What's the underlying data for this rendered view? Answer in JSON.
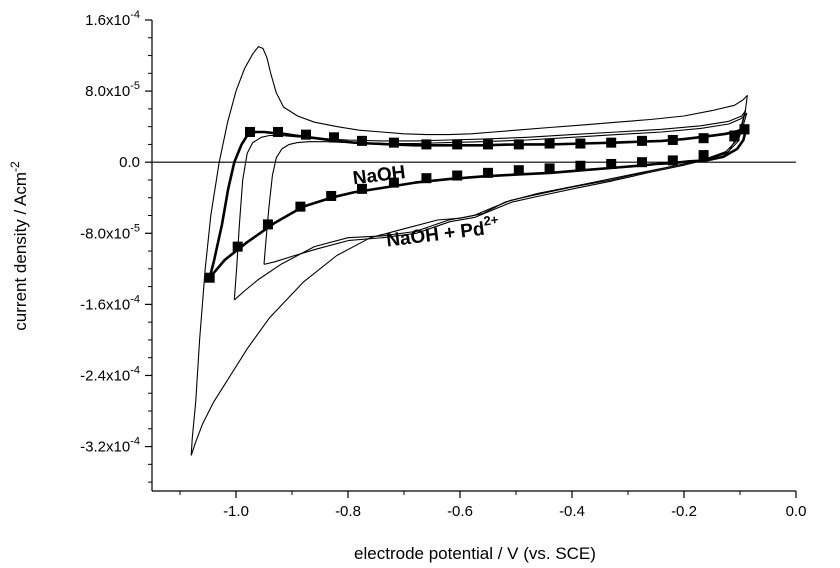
{
  "chart_data": {
    "type": "line",
    "title": "",
    "xlabel": "electrode potential / V (vs. SCE)",
    "ylabel": "current density / Acm",
    "ylabel_sup": "-2",
    "xlim": [
      -1.15,
      0.0
    ],
    "ylim": [
      -0.00037,
      0.00016
    ],
    "x_ticks": [
      {
        "value": -1.0,
        "label": "-1.0"
      },
      {
        "value": -0.8,
        "label": "-0.8"
      },
      {
        "value": -0.6,
        "label": "-0.6"
      },
      {
        "value": -0.4,
        "label": "-0.4"
      },
      {
        "value": -0.2,
        "label": "-0.2"
      },
      {
        "value": 0.0,
        "label": "0.0"
      }
    ],
    "y_ticks": [
      {
        "value": 0.00016,
        "label": "1.6x10",
        "sup": "-4"
      },
      {
        "value": 8e-05,
        "label": "8.0x10",
        "sup": "-5"
      },
      {
        "value": 0.0,
        "label": "0.0",
        "sup": ""
      },
      {
        "value": -8e-05,
        "label": "-8.0x10",
        "sup": "-5"
      },
      {
        "value": -0.00016,
        "label": "-1.6x10",
        "sup": "-4"
      },
      {
        "value": -0.00024,
        "label": "-2.4x10",
        "sup": "-4"
      },
      {
        "value": -0.00032,
        "label": "-3.2x10",
        "sup": "-4"
      }
    ],
    "grid": false,
    "legend": "none",
    "zero_line": true,
    "annotations": [
      {
        "text": "NaOH",
        "sup": "",
        "x": -0.79,
        "y": -2.5e-05,
        "rotate": -7
      },
      {
        "text": "NaOH + Pd",
        "sup": "2+",
        "x": -0.73,
        "y": -9.5e-05,
        "rotate": -7
      }
    ],
    "series": [
      {
        "style": "squares",
        "x": [
          -1.047,
          -1.039,
          -1.025,
          -1.014,
          -1.003,
          -0.99,
          -0.98,
          -0.965,
          -0.95,
          -0.935,
          -0.915,
          -0.895,
          -0.87,
          -0.845,
          -0.82,
          -0.79,
          -0.76,
          -0.72,
          -0.68,
          -0.64,
          -0.6,
          -0.56,
          -0.5,
          -0.44,
          -0.38,
          -0.32,
          -0.28,
          -0.24,
          -0.2,
          -0.16,
          -0.125,
          -0.105,
          -0.095,
          -0.09,
          -0.094,
          -0.105,
          -0.13,
          -0.16,
          -0.19,
          -0.22,
          -0.25,
          -0.28,
          -0.32,
          -0.38,
          -0.44,
          -0.5,
          -0.56,
          -0.62,
          -0.68,
          -0.74,
          -0.79,
          -0.83,
          -0.88,
          -0.93,
          -0.98,
          -1.02,
          -1.047
        ],
        "y": [
          -0.00013,
          -0.00011,
          -7e-05,
          -3e-05,
          0.0,
          2e-05,
          3e-05,
          3.4e-05,
          3.4e-05,
          3.3e-05,
          3.2e-05,
          3e-05,
          2.8e-05,
          2.6e-05,
          2.4e-05,
          2.2e-05,
          2.1e-05,
          2e-05,
          1.9e-05,
          1.9e-05,
          1.9e-05,
          1.9e-05,
          2e-05,
          2e-05,
          2.1e-05,
          2.2e-05,
          2.3e-05,
          2.4e-05,
          2.6e-05,
          2.9e-05,
          3.2e-05,
          3.5e-05,
          3.7e-05,
          3.5e-05,
          2.5e-05,
          1.5e-05,
          6e-06,
          2e-06,
          1e-06,
          -1e-06,
          -2e-06,
          -4e-06,
          -6e-06,
          -9e-06,
          -1.2e-05,
          -1.4e-05,
          -1.6e-05,
          -1.9e-05,
          -2.3e-05,
          -2.9e-05,
          -3.4e-05,
          -4e-05,
          -5e-05,
          -6.8e-05,
          -9e-05,
          -0.00011,
          -0.00013
        ],
        "marker_x": [
          -1.047,
          -0.997,
          -0.943,
          -0.885,
          -0.83,
          -0.775,
          -0.718,
          -0.66,
          -0.605,
          -0.55,
          -0.495,
          -0.44,
          -0.385,
          -0.33,
          -0.275,
          -0.22,
          -0.165,
          -0.11,
          -0.092,
          -0.975,
          -0.925,
          -0.875,
          -0.825,
          -0.775,
          -0.718,
          -0.66,
          -0.605,
          -0.55,
          -0.495,
          -0.44,
          -0.385,
          -0.33,
          -0.275,
          -0.22,
          -0.165,
          -0.11,
          -0.092
        ],
        "marker_y": [
          -0.00013,
          -9.5e-05,
          -7e-05,
          -5e-05,
          -3.8e-05,
          -3e-05,
          -2.3e-05,
          -1.8e-05,
          -1.5e-05,
          -1.2e-05,
          -9e-06,
          -7e-06,
          -4e-06,
          -2e-06,
          0.0,
          2e-06,
          8e-06,
          2.9e-05,
          3.7e-05,
          3.4e-05,
          3.4e-05,
          3.1e-05,
          2.8e-05,
          2.4e-05,
          2.2e-05,
          2e-05,
          2e-05,
          2e-05,
          2e-05,
          2.1e-05,
          2.1e-05,
          2.2e-05,
          2.4e-05,
          2.5e-05,
          2.7e-05,
          3e-05,
          3.7e-05
        ]
      },
      {
        "style": "line",
        "x": [
          -1.08,
          -1.078,
          -1.072,
          -1.065,
          -1.055,
          -1.045,
          -1.03,
          -1.015,
          -1.0,
          -0.985,
          -0.97,
          -0.96,
          -0.952,
          -0.945,
          -0.938,
          -0.928,
          -0.915,
          -0.89,
          -0.86,
          -0.82,
          -0.78,
          -0.74,
          -0.7,
          -0.66,
          -0.62,
          -0.58,
          -0.54,
          -0.5,
          -0.44,
          -0.38,
          -0.32,
          -0.26,
          -0.2,
          -0.15,
          -0.11,
          -0.095,
          -0.087,
          -0.09,
          -0.1,
          -0.12,
          -0.15,
          -0.2,
          -0.28,
          -0.38,
          -0.46,
          -0.52,
          -0.56,
          -0.6,
          -0.64,
          -0.7,
          -0.76,
          -0.82,
          -0.88,
          -0.94,
          -0.98,
          -1.01,
          -1.04,
          -1.06,
          -1.072,
          -1.08
        ],
        "y": [
          -0.00033,
          -0.00031,
          -0.00027,
          -0.0002,
          -0.00012,
          -6e-05,
          0.0,
          4.5e-05,
          8e-05,
          0.000105,
          0.000122,
          0.00013,
          0.000128,
          0.000118,
          0.0001,
          7.8e-05,
          6.2e-05,
          5.2e-05,
          4.5e-05,
          4e-05,
          3.6e-05,
          3.4e-05,
          3.2e-05,
          3.1e-05,
          3.1e-05,
          3.2e-05,
          3.4e-05,
          3.6e-05,
          3.9e-05,
          4.2e-05,
          4.5e-05,
          4.8e-05,
          5.2e-05,
          5.8e-05,
          6.4e-05,
          7e-05,
          7.5e-05,
          6e-05,
          3.5e-05,
          1.2e-05,
          5e-06,
          -2e-06,
          -1.2e-05,
          -2.5e-05,
          -3.5e-05,
          -4.5e-05,
          -5.8e-05,
          -6.3e-05,
          -6.5e-05,
          -7.5e-05,
          -8.5e-05,
          -0.000105,
          -0.000135,
          -0.000175,
          -0.00021,
          -0.00024,
          -0.00027,
          -0.000295,
          -0.000315,
          -0.00033
        ]
      },
      {
        "style": "line",
        "x": [
          -1.003,
          -0.999,
          -0.994,
          -0.988,
          -0.98,
          -0.97,
          -0.955,
          -0.94,
          -0.92,
          -0.9,
          -0.86,
          -0.8,
          -0.74,
          -0.68,
          -0.62,
          -0.56,
          -0.48,
          -0.4,
          -0.32,
          -0.24,
          -0.17,
          -0.12,
          -0.097,
          -0.09,
          -0.095,
          -0.105,
          -0.125,
          -0.16,
          -0.2,
          -0.26,
          -0.33,
          -0.4,
          -0.46,
          -0.51,
          -0.545,
          -0.575,
          -0.62,
          -0.68,
          -0.74,
          -0.8,
          -0.86,
          -0.92,
          -0.96,
          -0.985,
          -1.003
        ],
        "y": [
          -0.000155,
          -0.00012,
          -7e-05,
          -2e-05,
          1e-05,
          2.2e-05,
          2.8e-05,
          3e-05,
          3e-05,
          2.9e-05,
          2.7e-05,
          2.5e-05,
          2.4e-05,
          2.4e-05,
          2.5e-05,
          2.6e-05,
          2.8e-05,
          3.1e-05,
          3.4e-05,
          3.7e-05,
          4.1e-05,
          4.6e-05,
          5.2e-05,
          5.8e-05,
          4.5e-05,
          2.5e-05,
          1.2e-05,
          4e-06,
          -2e-06,
          -1e-05,
          -2e-05,
          -2.8e-05,
          -3.6e-05,
          -4.3e-05,
          -5.2e-05,
          -6e-05,
          -6.5e-05,
          -7.8e-05,
          -8.3e-05,
          -8.5e-05,
          -9.5e-05,
          -0.000115,
          -0.000132,
          -0.000145,
          -0.000155
        ]
      },
      {
        "style": "line",
        "x": [
          -0.95,
          -0.946,
          -0.941,
          -0.935,
          -0.928,
          -0.918,
          -0.905,
          -0.89,
          -0.87,
          -0.84,
          -0.8,
          -0.74,
          -0.68,
          -0.62,
          -0.56,
          -0.48,
          -0.4,
          -0.32,
          -0.24,
          -0.17,
          -0.12,
          -0.098,
          -0.088,
          -0.094,
          -0.104,
          -0.124,
          -0.158,
          -0.198,
          -0.258,
          -0.328,
          -0.398,
          -0.458,
          -0.508,
          -0.543,
          -0.573,
          -0.618,
          -0.678,
          -0.738,
          -0.798,
          -0.858,
          -0.9,
          -0.93,
          -0.95
        ],
        "y": [
          -0.000115,
          -8.5e-05,
          -5e-05,
          -1.5e-05,
          5e-06,
          1.5e-05,
          2e-05,
          2.2e-05,
          2.3e-05,
          2.3e-05,
          2.2e-05,
          2.1e-05,
          2.1e-05,
          2.2e-05,
          2.3e-05,
          2.5e-05,
          2.8e-05,
          3.1e-05,
          3.4e-05,
          3.8e-05,
          4.3e-05,
          4.9e-05,
          5.5e-05,
          4.2e-05,
          2.3e-05,
          1e-05,
          3e-06,
          -3e-06,
          -1.1e-05,
          -2.1e-05,
          -3e-05,
          -3.8e-05,
          -4.5e-05,
          -5.4e-05,
          -6.2e-05,
          -6.7e-05,
          -8e-05,
          -8.5e-05,
          -8.8e-05,
          -9.8e-05,
          -0.000106,
          -0.000112,
          -0.000115
        ]
      }
    ]
  }
}
